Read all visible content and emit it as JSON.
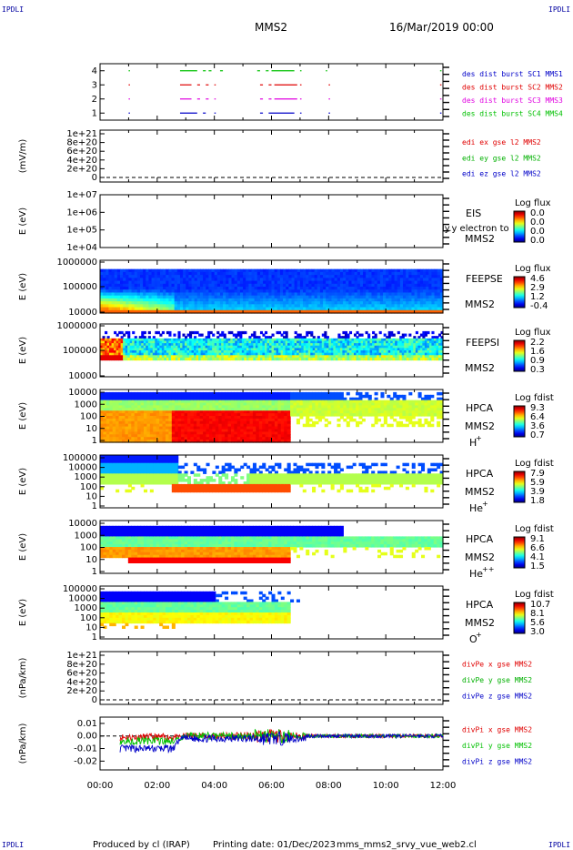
{
  "header": {
    "corner_left_top": "IPDLI",
    "corner_right_top": "IPDLI",
    "corner_left_bottom": "IPDLI",
    "corner_right_bottom": "IPDLI",
    "spacecraft": "MMS2",
    "date": "16/Mar/2019 00:00"
  },
  "footer": {
    "produced": "Produced by cl (IRAP)",
    "printing": "Printing date: 01/Dec/2023",
    "file": "mms_mms2_srvy_vue_web2.cl"
  },
  "colors": {
    "mms1": "#0000c8",
    "mms2": "#e00000",
    "mms3": "#e000e0",
    "mms4": "#00c000"
  },
  "chart_data": [
    {
      "id": "burst",
      "type": "scatter",
      "ylim": [
        0.5,
        4.5
      ],
      "yticks": [
        "4",
        "3",
        "2",
        "1"
      ],
      "legend": [
        "des dist burst SC1 MMS1",
        "des dist burst SC2 MMS2",
        "des dist burst SC3 MMS3",
        "des dist burst SC4 MMS4"
      ],
      "series": [
        {
          "level": 4,
          "color": "#00c000",
          "intervals": [
            [
              1.0,
              1.02
            ],
            [
              2.8,
              3.4
            ],
            [
              3.6,
              3.7
            ],
            [
              3.8,
              3.9
            ],
            [
              4.2,
              4.3
            ],
            [
              5.5,
              5.6
            ],
            [
              5.8,
              5.9
            ],
            [
              6.0,
              6.8
            ],
            [
              7.0,
              7.05
            ],
            [
              7.9,
              7.95
            ],
            [
              11.9,
              11.95
            ]
          ]
        },
        {
          "level": 3,
          "color": "#e00000",
          "intervals": [
            [
              1.0,
              1.02
            ],
            [
              2.8,
              3.2
            ],
            [
              3.4,
              3.5
            ],
            [
              3.7,
              3.8
            ],
            [
              4.0,
              4.05
            ],
            [
              5.6,
              5.7
            ],
            [
              5.9,
              6.0
            ],
            [
              6.1,
              6.9
            ],
            [
              7.0,
              7.05
            ],
            [
              8.0,
              8.05
            ],
            [
              11.9,
              11.95
            ]
          ]
        },
        {
          "level": 2,
          "color": "#e000e0",
          "intervals": [
            [
              1.0,
              1.02
            ],
            [
              2.8,
              3.2
            ],
            [
              3.4,
              3.5
            ],
            [
              3.7,
              3.8
            ],
            [
              4.0,
              4.05
            ],
            [
              5.6,
              5.7
            ],
            [
              5.9,
              6.0
            ],
            [
              6.1,
              6.9
            ],
            [
              7.0,
              7.05
            ],
            [
              8.0,
              8.05
            ],
            [
              11.9,
              11.95
            ]
          ]
        },
        {
          "level": 1,
          "color": "#0000c8",
          "intervals": [
            [
              1.0,
              1.02
            ],
            [
              2.8,
              3.4
            ],
            [
              3.6,
              3.7
            ],
            [
              4.0,
              4.05
            ],
            [
              5.6,
              5.7
            ],
            [
              5.9,
              6.8
            ],
            [
              7.0,
              7.05
            ],
            [
              8.0,
              8.05
            ],
            [
              11.9,
              11.95
            ]
          ]
        }
      ]
    },
    {
      "id": "edi",
      "type": "line",
      "ylabel": "(mV/m)",
      "yticks": [
        "1e+21",
        "8e+20",
        "6e+20",
        "4e+20",
        "2e+20",
        "0"
      ],
      "legend": [
        "edi ex gse l2 MMS2",
        "edi ey gse l2 MMS2",
        "edi ez gse l2 MMS2"
      ]
    },
    {
      "id": "eis",
      "type": "heatmap",
      "ylabel": "E (eV)",
      "yticks": [
        "1e+07",
        "1e+06",
        "1e+05",
        "1e+04"
      ],
      "instrument": "EIS",
      "subtitle": "ly.y electron to",
      "spacecraft": "MMS2",
      "cbar_title": "Log flux",
      "cbar_ticks": [
        "0.0",
        "0.0",
        "0.0",
        "0.0"
      ]
    },
    {
      "id": "feepse",
      "type": "heatmap",
      "ylabel": "E (eV)",
      "yticks": [
        "1000000",
        "100000",
        "10000"
      ],
      "instrument": "FEEPSE",
      "spacecraft": "MMS2",
      "cbar_title": "Log flux",
      "cbar_ticks": [
        "4.6",
        "2.9",
        "1.2",
        "-0.4"
      ]
    },
    {
      "id": "feepsi",
      "type": "heatmap",
      "ylabel": "E (eV)",
      "yticks": [
        "1000000",
        "100000",
        "10000"
      ],
      "instrument": "FEEPSI",
      "spacecraft": "MMS2",
      "cbar_title": "Log flux",
      "cbar_ticks": [
        "2.2",
        "1.6",
        "0.9",
        "0.3"
      ]
    },
    {
      "id": "hpca_h",
      "type": "heatmap",
      "ylabel": "E (eV)",
      "yticks": [
        "10000",
        "1000",
        "100",
        "10",
        "1"
      ],
      "instrument": "HPCA",
      "spacecraft": "MMS2",
      "species": "H",
      "charge": "+",
      "cbar_title": "Log fdist",
      "cbar_ticks": [
        "9.3",
        "6.4",
        "3.6",
        "0.7"
      ]
    },
    {
      "id": "hpca_he",
      "type": "heatmap",
      "ylabel": "E (eV)",
      "yticks": [
        "100000",
        "10000",
        "1000",
        "100",
        "10",
        "1"
      ],
      "instrument": "HPCA",
      "spacecraft": "MMS2",
      "species": "He",
      "charge": "+",
      "cbar_title": "Log fdist",
      "cbar_ticks": [
        "7.9",
        "5.9",
        "3.9",
        "1.8"
      ]
    },
    {
      "id": "hpca_hepp",
      "type": "heatmap",
      "ylabel": "E (eV)",
      "yticks": [
        "10000",
        "1000",
        "100",
        "10",
        "1"
      ],
      "instrument": "HPCA",
      "spacecraft": "MMS2",
      "species": "He",
      "charge": "++",
      "cbar_title": "Log fdist",
      "cbar_ticks": [
        "9.1",
        "6.6",
        "4.1",
        "1.5"
      ]
    },
    {
      "id": "hpca_o",
      "type": "heatmap",
      "ylabel": "E (eV)",
      "yticks": [
        "100000",
        "10000",
        "1000",
        "100",
        "10",
        "1"
      ],
      "instrument": "HPCA",
      "spacecraft": "MMS2",
      "species": "O",
      "charge": "+",
      "cbar_title": "Log fdist",
      "cbar_ticks": [
        "10.7",
        "8.1",
        "5.6",
        "3.0"
      ]
    },
    {
      "id": "divpe",
      "type": "line",
      "ylabel": "(nPa/km)",
      "yticks": [
        "1e+21",
        "8e+20",
        "6e+20",
        "4e+20",
        "2e+20",
        "0"
      ],
      "legend": [
        "divPe x gse MMS2",
        "divPe y gse MMS2",
        "divPe z gse MMS2"
      ]
    },
    {
      "id": "divpi",
      "type": "line",
      "ylabel": "(nPa/km)",
      "yticks": [
        "0.01",
        "0.00",
        "-0.01",
        "-0.02"
      ],
      "ylim": [
        -0.027,
        0.015
      ],
      "legend": [
        "divPi x gse MMS2",
        "divPi y gse MMS2",
        "divPi z gse MMS2"
      ]
    }
  ],
  "xaxis": {
    "xlim": [
      0,
      12
    ],
    "tick_labels": [
      "00:00",
      "02:00",
      "04:00",
      "06:00",
      "08:00",
      "10:00",
      "12:00"
    ]
  }
}
